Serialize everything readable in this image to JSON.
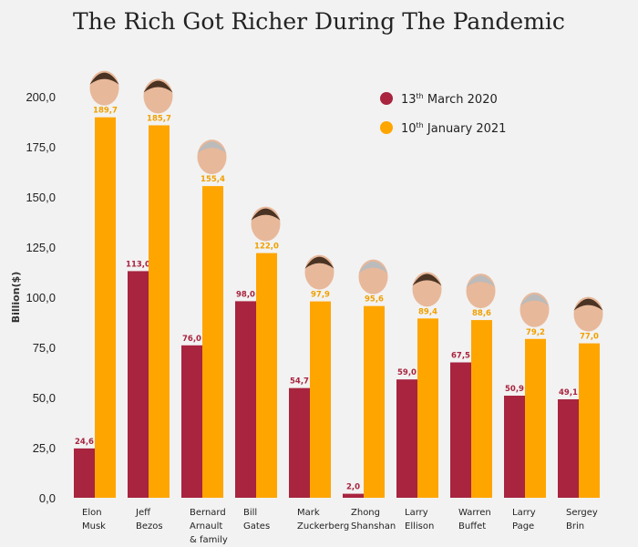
{
  "chart_data": {
    "type": "bar",
    "title": "The Rich Got Richer During The Pandemic",
    "ylabel": "Billion($)",
    "xlabel": "",
    "ylim": [
      0,
      200
    ],
    "yticks": [
      "0,0",
      "25,0",
      "50,0",
      "75,0",
      "100,0",
      "125,0",
      "150,0",
      "175,0",
      "200,0"
    ],
    "grid": false,
    "legend_position": "top-right",
    "categories": [
      [
        "Elon",
        "Musk"
      ],
      [
        "Jeff",
        "Bezos"
      ],
      [
        "Bernard",
        "Arnault",
        "& family"
      ],
      [
        "Bill",
        "Gates"
      ],
      [
        "Mark",
        "Zuckerberg"
      ],
      [
        "Zhong",
        "Shanshan"
      ],
      [
        "Larry",
        "Ellison"
      ],
      [
        "Warren",
        "Buffet"
      ],
      [
        "Larry",
        "Page"
      ],
      [
        "Sergey",
        "Brin"
      ]
    ],
    "series": [
      {
        "name": "13th March 2020",
        "color": "#a8243f",
        "values": [
          24.6,
          113.0,
          76.0,
          98.0,
          54.7,
          2.0,
          59.0,
          67.5,
          50.9,
          49.1
        ],
        "labels": [
          "24,6",
          "113,0",
          "76,0",
          "98,0",
          "54,7",
          "2,0",
          "59,0",
          "67,5",
          "50,9",
          "49,1"
        ]
      },
      {
        "name": "10th January 2021",
        "color": "#ffa500",
        "values": [
          189.7,
          185.7,
          155.4,
          122.0,
          97.9,
          95.6,
          89.4,
          88.6,
          79.2,
          77.0
        ],
        "labels": [
          "189,7",
          "185,7",
          "155,4",
          "122,0",
          "97,9",
          "95,6",
          "89,4",
          "88,6",
          "79,2",
          "77,0"
        ]
      }
    ],
    "legend": [
      {
        "main": "13",
        "sup": "th",
        "rest": " March 2020"
      },
      {
        "main": "10",
        "sup": "th",
        "rest": " January 2021"
      }
    ]
  }
}
